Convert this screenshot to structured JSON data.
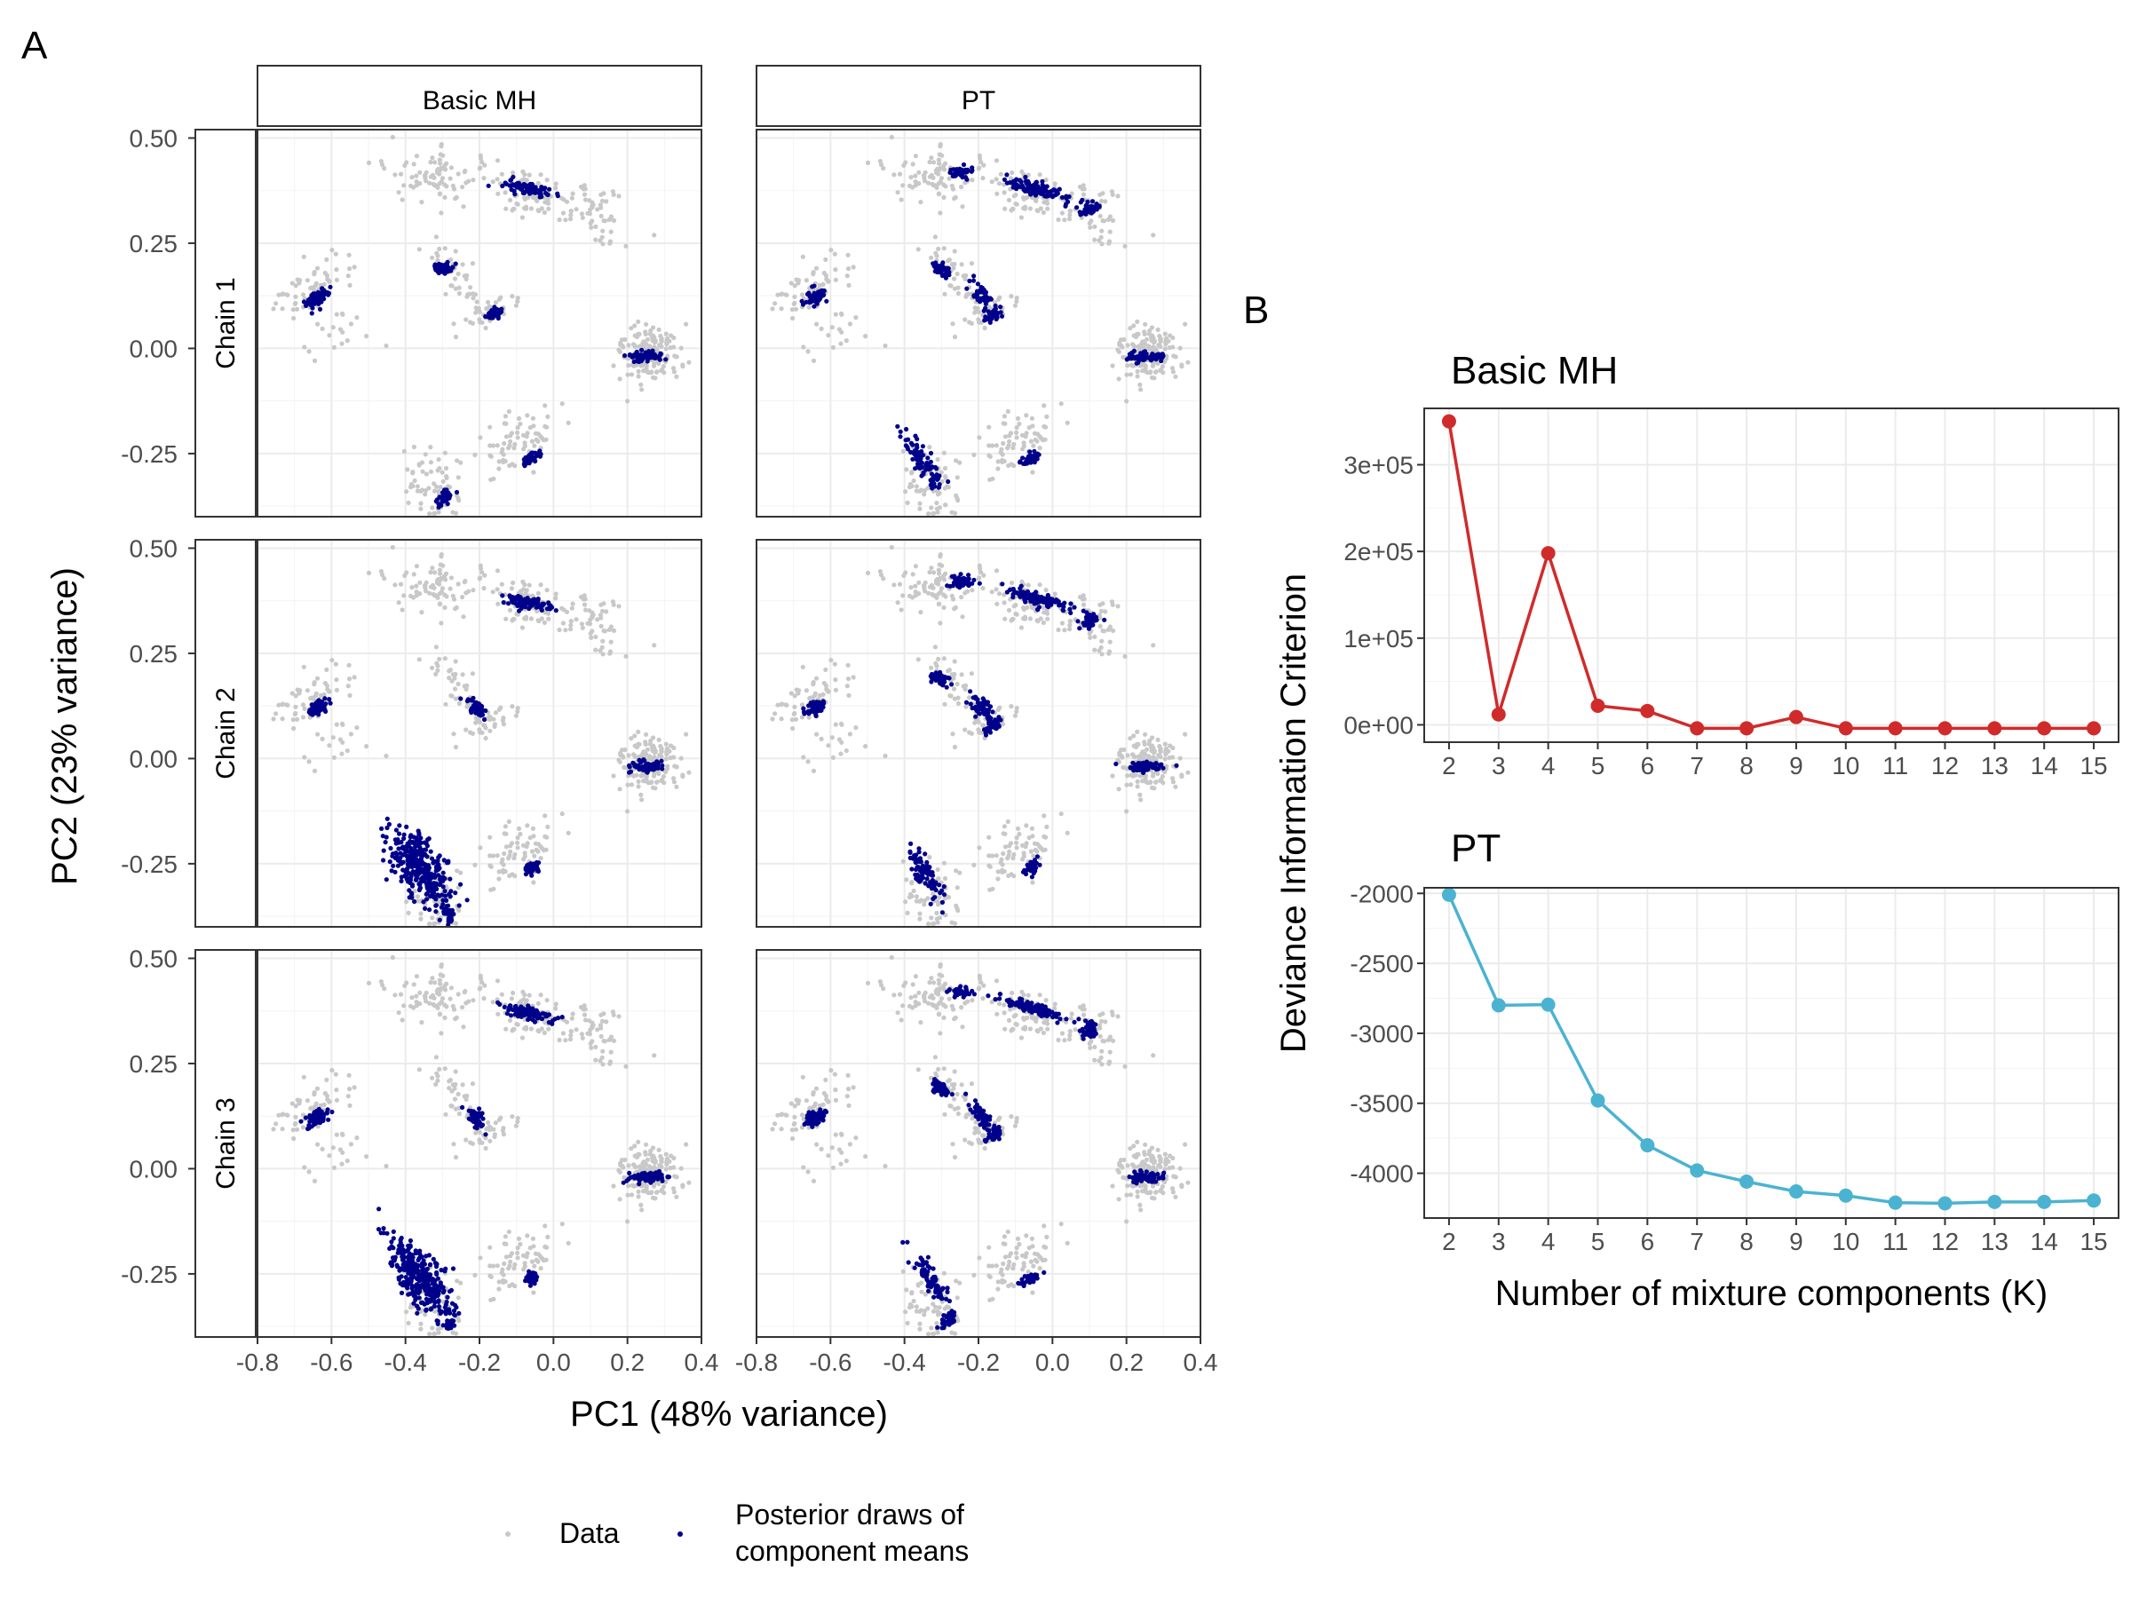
{
  "panel_labels": {
    "a": "A",
    "b": "B"
  },
  "legend": {
    "items": [
      {
        "label": "Data",
        "color": "#c8c8c8"
      },
      {
        "label_lines": [
          "Posterior draws of",
          "component means"
        ],
        "color": "#00008b"
      }
    ]
  },
  "colors": {
    "data": "#c8c8c8",
    "posterior": "#00008b",
    "mh_line": "#d02b2b",
    "pt_line": "#4bb3d1",
    "grid": "#ebebeb",
    "axis_text": "#4d4d4d"
  },
  "chart_data": [
    {
      "type": "scatter",
      "panel": "A",
      "xlabel": "PC1 (48% variance)",
      "ylabel": "PC2 (23% variance)",
      "facet_columns": [
        "Basic MH",
        "PT"
      ],
      "facet_rows": [
        "Chain 1",
        "Chain 2",
        "Chain 3"
      ],
      "xlim": [
        -0.8,
        0.4
      ],
      "ylim": [
        -0.4,
        0.52
      ],
      "xticks": [
        -0.8,
        -0.6,
        -0.4,
        -0.2,
        0.0,
        0.2,
        0.4
      ],
      "xtick_labels": [
        "-0.8",
        "-0.6",
        "-0.4",
        "-0.2",
        "0.0",
        "0.2",
        "0.4"
      ],
      "yticks": [
        -0.25,
        0.0,
        0.25,
        0.5
      ],
      "ytick_labels": [
        "-0.25",
        "0.00",
        "0.25",
        "0.50"
      ],
      "series_names": [
        "Data",
        "Posterior draws of component means"
      ],
      "data_clusters": [
        {
          "x": -0.66,
          "y": 0.14,
          "sx": 0.03,
          "sy": 0.05,
          "rot": -60,
          "n": 60
        },
        {
          "x": -0.31,
          "y": 0.41,
          "sx": 0.07,
          "sy": 0.03,
          "rot": 0,
          "n": 90
        },
        {
          "x": -0.08,
          "y": 0.37,
          "sx": 0.05,
          "sy": 0.025,
          "rot": -15,
          "n": 70
        },
        {
          "x": 0.11,
          "y": 0.32,
          "sx": 0.05,
          "sy": 0.04,
          "rot": -30,
          "n": 60
        },
        {
          "x": -0.26,
          "y": 0.17,
          "sx": 0.05,
          "sy": 0.02,
          "rot": -40,
          "n": 40
        },
        {
          "x": -0.17,
          "y": 0.08,
          "sx": 0.02,
          "sy": 0.04,
          "rot": -60,
          "n": 35
        },
        {
          "x": 0.26,
          "y": -0.01,
          "sx": 0.04,
          "sy": 0.035,
          "rot": 0,
          "n": 150
        },
        {
          "x": -0.33,
          "y": -0.33,
          "sx": 0.05,
          "sy": 0.05,
          "rot": -50,
          "n": 70
        },
        {
          "x": -0.1,
          "y": -0.23,
          "sx": 0.07,
          "sy": 0.03,
          "rot": 30,
          "n": 70
        },
        {
          "x": -0.6,
          "y": 0.04,
          "sx": 0.04,
          "sy": 0.05,
          "rot": -55,
          "n": 20
        }
      ],
      "posterior_clusters": [
        [
          {
            "x": -0.64,
            "y": 0.12,
            "sx": 0.008,
            "sy": 0.015,
            "rot": -60,
            "n": 70
          },
          {
            "x": -0.07,
            "y": 0.38,
            "sx": 0.035,
            "sy": 0.007,
            "rot": -10,
            "n": 90
          },
          {
            "x": -0.3,
            "y": 0.19,
            "sx": 0.012,
            "sy": 0.006,
            "rot": 0,
            "n": 50
          },
          {
            "x": -0.16,
            "y": 0.08,
            "sx": 0.006,
            "sy": 0.012,
            "rot": -60,
            "n": 40
          },
          {
            "x": 0.25,
            "y": -0.02,
            "sx": 0.025,
            "sy": 0.006,
            "rot": 0,
            "n": 60
          },
          {
            "x": -0.29,
            "y": -0.35,
            "sx": 0.008,
            "sy": 0.012,
            "rot": -50,
            "n": 40
          },
          {
            "x": -0.06,
            "y": -0.26,
            "sx": 0.012,
            "sy": 0.007,
            "rot": 30,
            "n": 40
          }
        ],
        [
          {
            "x": -0.64,
            "y": 0.12,
            "sx": 0.008,
            "sy": 0.015,
            "rot": -60,
            "n": 70
          },
          {
            "x": -0.25,
            "y": 0.42,
            "sx": 0.015,
            "sy": 0.006,
            "rot": 0,
            "n": 45
          },
          {
            "x": -0.05,
            "y": 0.38,
            "sx": 0.045,
            "sy": 0.007,
            "rot": -15,
            "n": 110
          },
          {
            "x": 0.1,
            "y": 0.33,
            "sx": 0.012,
            "sy": 0.01,
            "rot": 0,
            "n": 40
          },
          {
            "x": -0.3,
            "y": 0.19,
            "sx": 0.012,
            "sy": 0.007,
            "rot": -20,
            "n": 50
          },
          {
            "x": -0.19,
            "y": 0.12,
            "sx": 0.02,
            "sy": 0.01,
            "rot": -50,
            "n": 50
          },
          {
            "x": -0.16,
            "y": 0.08,
            "sx": 0.006,
            "sy": 0.012,
            "rot": -60,
            "n": 40
          },
          {
            "x": 0.25,
            "y": -0.02,
            "sx": 0.025,
            "sy": 0.006,
            "rot": 0,
            "n": 60
          },
          {
            "x": -0.35,
            "y": -0.27,
            "sx": 0.04,
            "sy": 0.012,
            "rot": -55,
            "n": 90
          },
          {
            "x": -0.06,
            "y": -0.26,
            "sx": 0.012,
            "sy": 0.007,
            "rot": 30,
            "n": 40
          }
        ],
        [
          {
            "x": -0.64,
            "y": 0.12,
            "sx": 0.008,
            "sy": 0.015,
            "rot": -60,
            "n": 70
          },
          {
            "x": -0.07,
            "y": 0.37,
            "sx": 0.035,
            "sy": 0.007,
            "rot": -10,
            "n": 90
          },
          {
            "x": -0.21,
            "y": 0.12,
            "sx": 0.015,
            "sy": 0.008,
            "rot": -45,
            "n": 50
          },
          {
            "x": 0.25,
            "y": -0.02,
            "sx": 0.025,
            "sy": 0.006,
            "rot": 0,
            "n": 60
          },
          {
            "x": -0.36,
            "y": -0.26,
            "sx": 0.06,
            "sy": 0.025,
            "rot": -50,
            "n": 320
          },
          {
            "x": -0.28,
            "y": -0.37,
            "sx": 0.006,
            "sy": 0.008,
            "rot": 0,
            "n": 30
          },
          {
            "x": -0.06,
            "y": -0.26,
            "sx": 0.012,
            "sy": 0.007,
            "rot": 30,
            "n": 40
          }
        ],
        [
          {
            "x": -0.64,
            "y": 0.12,
            "sx": 0.008,
            "sy": 0.015,
            "rot": -60,
            "n": 70
          },
          {
            "x": -0.25,
            "y": 0.42,
            "sx": 0.015,
            "sy": 0.006,
            "rot": 0,
            "n": 45
          },
          {
            "x": -0.05,
            "y": 0.38,
            "sx": 0.045,
            "sy": 0.007,
            "rot": -15,
            "n": 110
          },
          {
            "x": 0.1,
            "y": 0.33,
            "sx": 0.012,
            "sy": 0.01,
            "rot": 0,
            "n": 40
          },
          {
            "x": -0.3,
            "y": 0.19,
            "sx": 0.012,
            "sy": 0.007,
            "rot": -20,
            "n": 50
          },
          {
            "x": -0.19,
            "y": 0.12,
            "sx": 0.02,
            "sy": 0.01,
            "rot": -50,
            "n": 50
          },
          {
            "x": -0.16,
            "y": 0.08,
            "sx": 0.006,
            "sy": 0.012,
            "rot": -60,
            "n": 40
          },
          {
            "x": 0.25,
            "y": -0.02,
            "sx": 0.025,
            "sy": 0.006,
            "rot": 0,
            "n": 60
          },
          {
            "x": -0.35,
            "y": -0.27,
            "sx": 0.04,
            "sy": 0.012,
            "rot": -55,
            "n": 90
          },
          {
            "x": -0.06,
            "y": -0.26,
            "sx": 0.012,
            "sy": 0.007,
            "rot": 30,
            "n": 40
          }
        ],
        [
          {
            "x": -0.64,
            "y": 0.12,
            "sx": 0.008,
            "sy": 0.015,
            "rot": -60,
            "n": 70
          },
          {
            "x": -0.07,
            "y": 0.37,
            "sx": 0.035,
            "sy": 0.007,
            "rot": -10,
            "n": 90
          },
          {
            "x": -0.21,
            "y": 0.12,
            "sx": 0.015,
            "sy": 0.008,
            "rot": -45,
            "n": 50
          },
          {
            "x": 0.25,
            "y": -0.02,
            "sx": 0.025,
            "sy": 0.006,
            "rot": 0,
            "n": 60
          },
          {
            "x": -0.36,
            "y": -0.26,
            "sx": 0.06,
            "sy": 0.025,
            "rot": -50,
            "n": 320
          },
          {
            "x": -0.28,
            "y": -0.37,
            "sx": 0.006,
            "sy": 0.008,
            "rot": 0,
            "n": 30
          },
          {
            "x": -0.06,
            "y": -0.26,
            "sx": 0.012,
            "sy": 0.007,
            "rot": 30,
            "n": 40
          }
        ],
        [
          {
            "x": -0.64,
            "y": 0.12,
            "sx": 0.008,
            "sy": 0.015,
            "rot": -60,
            "n": 70
          },
          {
            "x": -0.25,
            "y": 0.42,
            "sx": 0.015,
            "sy": 0.006,
            "rot": 0,
            "n": 45
          },
          {
            "x": -0.05,
            "y": 0.38,
            "sx": 0.045,
            "sy": 0.007,
            "rot": -15,
            "n": 110
          },
          {
            "x": 0.1,
            "y": 0.33,
            "sx": 0.012,
            "sy": 0.01,
            "rot": 0,
            "n": 40
          },
          {
            "x": -0.3,
            "y": 0.19,
            "sx": 0.012,
            "sy": 0.007,
            "rot": -20,
            "n": 50
          },
          {
            "x": -0.19,
            "y": 0.12,
            "sx": 0.02,
            "sy": 0.01,
            "rot": -50,
            "n": 50
          },
          {
            "x": -0.16,
            "y": 0.08,
            "sx": 0.006,
            "sy": 0.012,
            "rot": -60,
            "n": 40
          },
          {
            "x": 0.25,
            "y": -0.02,
            "sx": 0.025,
            "sy": 0.006,
            "rot": 0,
            "n": 60
          },
          {
            "x": -0.33,
            "y": -0.26,
            "sx": 0.035,
            "sy": 0.01,
            "rot": -55,
            "n": 70
          },
          {
            "x": -0.28,
            "y": -0.36,
            "sx": 0.008,
            "sy": 0.012,
            "rot": -50,
            "n": 35
          },
          {
            "x": -0.06,
            "y": -0.26,
            "sx": 0.012,
            "sy": 0.007,
            "rot": 30,
            "n": 40
          }
        ]
      ]
    },
    {
      "type": "line",
      "panel": "B",
      "title": "Basic MH",
      "x": [
        2,
        3,
        4,
        5,
        6,
        7,
        8,
        9,
        10,
        11,
        12,
        13,
        14,
        15
      ],
      "y": [
        350000,
        12000,
        198000,
        22000,
        16000,
        -4000,
        -4000,
        9000,
        -4000,
        -4000,
        -4000,
        -4000,
        -4000,
        -4000
      ],
      "xlim": [
        1.5,
        15.5
      ],
      "ylim": [
        -20000,
        365000
      ],
      "yticks": [
        0,
        100000,
        200000,
        300000
      ],
      "ytick_labels": [
        "0e+00",
        "1e+05",
        "2e+05",
        "3e+05"
      ],
      "xticks": [
        2,
        3,
        4,
        5,
        6,
        7,
        8,
        9,
        10,
        11,
        12,
        13,
        14,
        15
      ],
      "color": "#d02b2b"
    },
    {
      "type": "line",
      "panel": "B",
      "title": "PT",
      "x": [
        2,
        3,
        4,
        5,
        6,
        7,
        8,
        9,
        10,
        11,
        12,
        13,
        14,
        15
      ],
      "y": [
        -2010,
        -2800,
        -2795,
        -3480,
        -3800,
        -3980,
        -4060,
        -4130,
        -4160,
        -4210,
        -4215,
        -4205,
        -4205,
        -4195
      ],
      "xlim": [
        1.5,
        15.5
      ],
      "ylim": [
        -4320,
        -1960
      ],
      "yticks": [
        -4000,
        -3500,
        -3000,
        -2500,
        -2000
      ],
      "ytick_labels": [
        "-4000",
        "-3500",
        "-3000",
        "-2500",
        "-2000"
      ],
      "xticks": [
        2,
        3,
        4,
        5,
        6,
        7,
        8,
        9,
        10,
        11,
        12,
        13,
        14,
        15
      ],
      "color": "#4bb3d1"
    }
  ],
  "panel_b_axes": {
    "ylabel": "Deviance Information Criterion",
    "xlabel": "Number of mixture components (K)"
  }
}
